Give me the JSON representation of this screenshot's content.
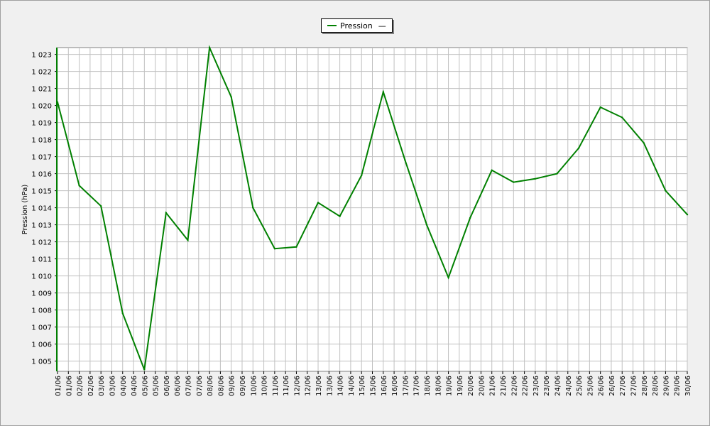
{
  "legend": {
    "series_name": "Pression",
    "marker": "—"
  },
  "chart_data": {
    "type": "line",
    "title": "",
    "xlabel": "",
    "ylabel": "Pression (hPa)",
    "ylim": [
      1004.4,
      1023.4
    ],
    "grid": true,
    "legend_position": "top-center",
    "yticks": [
      1005,
      1006,
      1007,
      1008,
      1009,
      1010,
      1011,
      1012,
      1013,
      1014,
      1015,
      1016,
      1017,
      1018,
      1019,
      1020,
      1021,
      1022,
      1023
    ],
    "ytick_labels": [
      "1 005",
      "1 006",
      "1 007",
      "1 008",
      "1 009",
      "1 010",
      "1 011",
      "1 012",
      "1 013",
      "1 014",
      "1 015",
      "1 016",
      "1 017",
      "1 018",
      "1 019",
      "1 020",
      "1 021",
      "1 022",
      "1 023"
    ],
    "x_labels": [
      "01/06",
      "01/06",
      "02/06",
      "02/06",
      "03/06",
      "03/06",
      "04/06",
      "04/06",
      "05/06",
      "05/06",
      "06/06",
      "06/06",
      "07/06",
      "07/06",
      "08/06",
      "08/06",
      "09/06",
      "09/06",
      "10/06",
      "10/06",
      "11/06",
      "11/06",
      "12/06",
      "12/06",
      "13/06",
      "13/06",
      "14/06",
      "14/06",
      "15/06",
      "15/06",
      "16/06",
      "16/06",
      "17/06",
      "17/06",
      "18/06",
      "18/06",
      "19/06",
      "19/06",
      "20/06",
      "20/06",
      "21/06",
      "21/06",
      "22/06",
      "22/06",
      "23/06",
      "23/06",
      "24/06",
      "24/06",
      "25/06",
      "25/06",
      "26/06",
      "26/06",
      "27/06",
      "27/06",
      "28/06",
      "28/06",
      "29/06",
      "29/06",
      "30/06"
    ],
    "color": "#008000",
    "series": [
      {
        "name": "Pression",
        "x": [
          "01/06",
          "02/06",
          "03/06",
          "04/06",
          "05/06",
          "06/06",
          "07/06",
          "08/06",
          "09/06",
          "10/06",
          "11/06",
          "12/06",
          "13/06",
          "14/06",
          "15/06",
          "16/06",
          "17/06",
          "18/06",
          "19/06",
          "20/06",
          "21/06",
          "22/06",
          "23/06",
          "24/06",
          "25/06",
          "26/06",
          "27/06",
          "28/06",
          "29/06",
          "30/06"
        ],
        "values": [
          1020.2,
          1015.3,
          1014.1,
          1007.8,
          1004.5,
          1013.7,
          1012.1,
          1023.4,
          1020.5,
          1014.0,
          1011.6,
          1011.7,
          1014.3,
          1013.5,
          1015.9,
          1020.8,
          1016.8,
          1013.0,
          1009.9,
          1013.4,
          1016.2,
          1015.5,
          1015.7,
          1016.0,
          1017.5,
          1019.9,
          1019.3,
          1017.8,
          1015.0,
          1013.6
        ]
      }
    ]
  }
}
